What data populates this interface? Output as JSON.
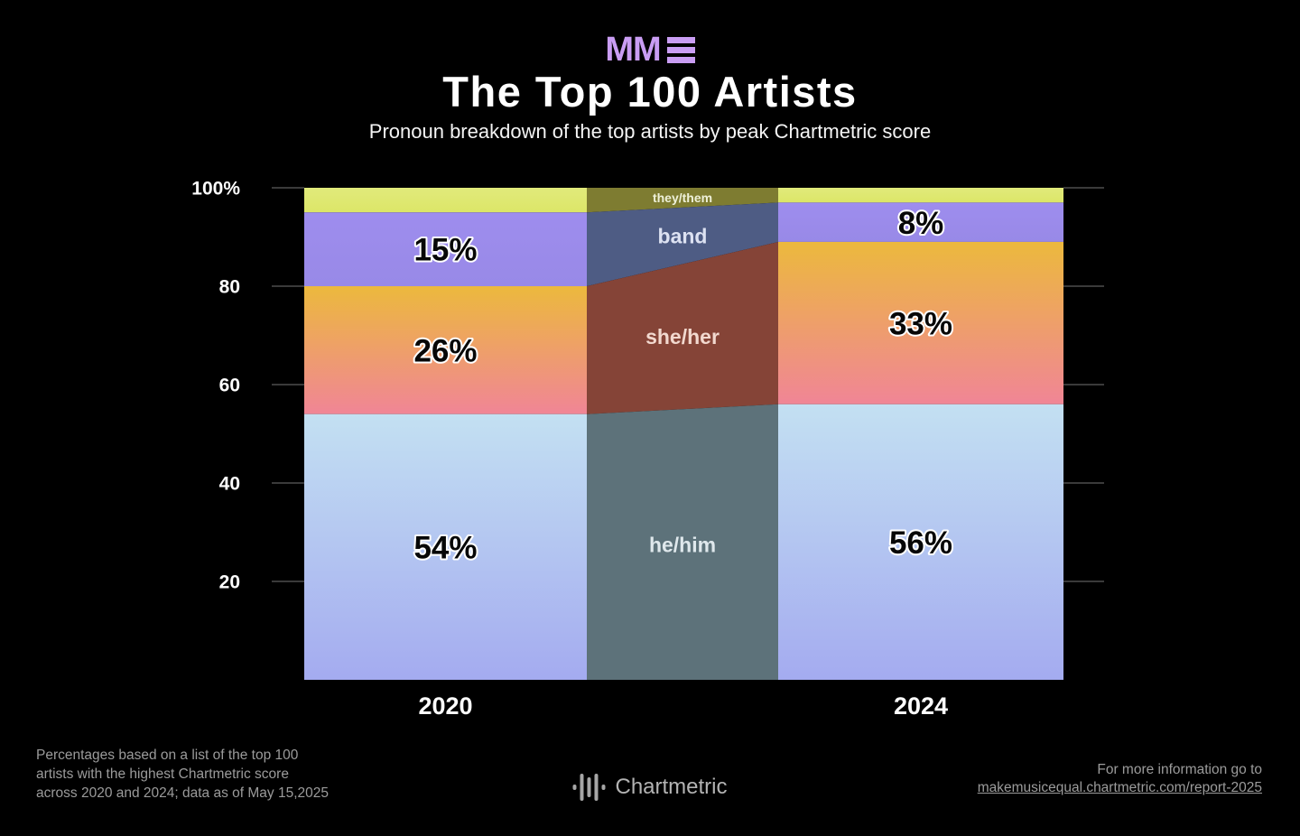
{
  "header": {
    "logo": {
      "text": "MM",
      "bars_icon": "triple-bar-icon",
      "color": "#c99df3"
    },
    "title": "The Top 100 Artists",
    "subtitle": "Pronoun breakdown of the top artists by peak Chartmetric score"
  },
  "chart_data": {
    "type": "bar",
    "variant": "100pct-stacked-with-flows",
    "title": "The Top 100 Artists",
    "subtitle": "Pronoun breakdown of the top artists by peak Chartmetric score",
    "categories": [
      "2020",
      "2024"
    ],
    "series": [
      {
        "name": "they/them",
        "values": [
          5,
          3
        ],
        "value_labels": [
          null,
          null
        ],
        "bar_gradient": [
          "#e1ea7b",
          "#dce668"
        ],
        "flow_color": "#7e7c31",
        "name_label_color": "#eef0d8",
        "name_font_size": 14
      },
      {
        "name": "band",
        "values": [
          15,
          8
        ],
        "value_labels": [
          "15%",
          "8%"
        ],
        "bar_gradient": [
          "#9e8dee",
          "#9889e7"
        ],
        "flow_color": "#4e5c84",
        "name_label_color": "#dde2f2",
        "name_font_size": 23
      },
      {
        "name": "she/her",
        "values": [
          26,
          33
        ],
        "value_labels": [
          "26%",
          "33%"
        ],
        "bar_gradient": [
          "#ecb93d",
          "#f08596"
        ],
        "flow_color": "#854437",
        "name_label_color": "#f2d9cf",
        "name_font_size": 23
      },
      {
        "name": "he/him",
        "values": [
          54,
          56
        ],
        "value_labels": [
          "54%",
          "56%"
        ],
        "bar_gradient": [
          "#c3e0f2",
          "#a4abf0"
        ],
        "flow_color": "#5d727a",
        "name_label_color": "#dfe8ec",
        "name_font_size": 23
      }
    ],
    "ylim": [
      0,
      100
    ],
    "yticks": [
      {
        "value": 100,
        "label": "100%"
      },
      {
        "value": 80,
        "label": "80"
      },
      {
        "value": 60,
        "label": "60"
      },
      {
        "value": 40,
        "label": "40"
      },
      {
        "value": 20,
        "label": "20"
      }
    ],
    "grid_color": "#3a3a3a",
    "value_label_style": {
      "fill": "#070707",
      "outline": "#ffffff"
    },
    "legend": "none"
  },
  "footer": {
    "note_lines": [
      "Percentages based on a list of the top 100",
      "artists with the highest Chartmetric score",
      "across 2020 and 2024; data as of May 15,2025"
    ],
    "brand": {
      "name": "Chartmetric",
      "icon": "waveform-icon"
    },
    "info": {
      "line1": "For more information go to",
      "link": "makemusicequal.chartmetric.com/report-2025"
    }
  }
}
